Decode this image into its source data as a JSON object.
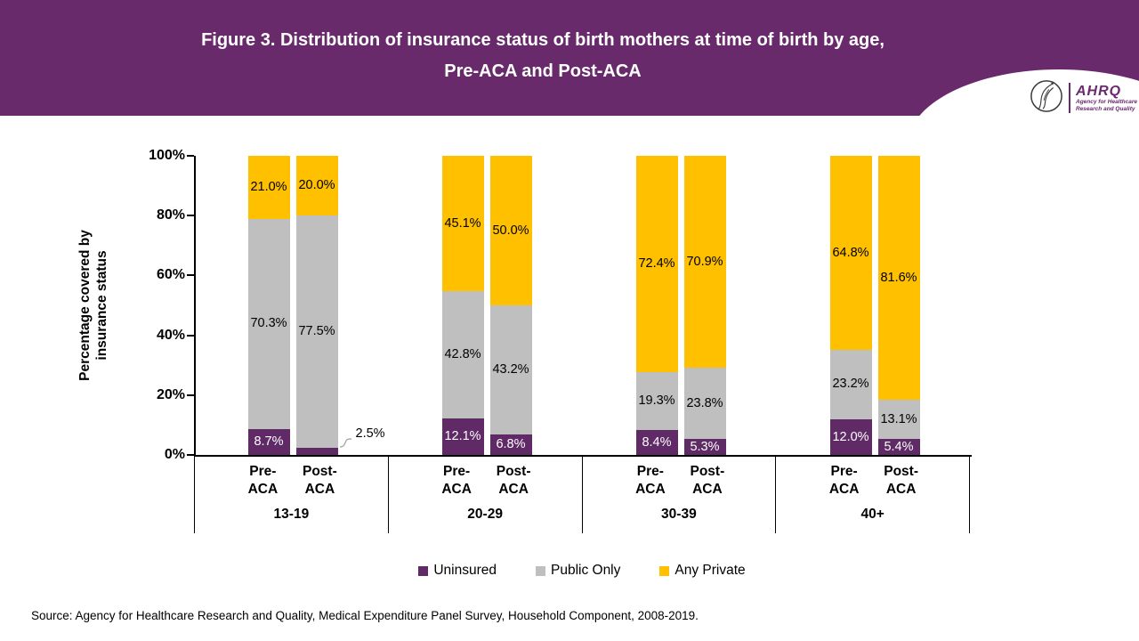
{
  "header": {
    "title_line1": "Figure 3. Distribution of insurance status of birth mothers at time of birth by age,",
    "title_line2": "Pre-ACA and Post-ACA",
    "bg_color": "#692a6b",
    "logo": {
      "acronym": "AHRQ",
      "tagline_line1": "Agency for Healthcare",
      "tagline_line2": "Research and Quality"
    }
  },
  "chart_data": {
    "type": "bar",
    "subtype": "stacked-percent",
    "title": "Figure 3. Distribution of insurance status of birth mothers at time of birth by age, Pre-ACA and Post-ACA",
    "ylabel_line1": "Percentage covered by",
    "ylabel_line2": "insurance status",
    "ylim": [
      0,
      100
    ],
    "grid": false,
    "legend_position": "bottom",
    "y_ticks": [
      {
        "value": 0,
        "label": "0%"
      },
      {
        "value": 20,
        "label": "20%"
      },
      {
        "value": 40,
        "label": "40%"
      },
      {
        "value": 60,
        "label": "60%"
      },
      {
        "value": 80,
        "label": "80%"
      },
      {
        "value": 100,
        "label": "100%"
      }
    ],
    "series": [
      {
        "key": "uninsured",
        "name": "Uninsured",
        "color": "#5f2a66",
        "label_color": "#ffffff"
      },
      {
        "key": "public_only",
        "name": "Public Only",
        "color": "#bfbfbf",
        "label_color": "#000000"
      },
      {
        "key": "any_private",
        "name": "Any Private",
        "color": "#ffc000",
        "label_color": "#000000"
      }
    ],
    "groups": [
      {
        "age": "13-19",
        "bars": [
          {
            "label_top": "Pre-",
            "label_bottom": "ACA",
            "callout": null,
            "values": {
              "uninsured": 8.7,
              "public_only": 70.3,
              "any_private": 21.0
            }
          },
          {
            "label_top": "Post-",
            "label_bottom": "ACA",
            "callout": "uninsured",
            "values": {
              "uninsured": 2.5,
              "public_only": 77.5,
              "any_private": 20.0
            }
          }
        ]
      },
      {
        "age": "20-29",
        "bars": [
          {
            "label_top": "Pre-",
            "label_bottom": "ACA",
            "callout": null,
            "values": {
              "uninsured": 12.1,
              "public_only": 42.8,
              "any_private": 45.1
            }
          },
          {
            "label_top": "Post-",
            "label_bottom": "ACA",
            "callout": null,
            "values": {
              "uninsured": 6.8,
              "public_only": 43.2,
              "any_private": 50.0
            }
          }
        ]
      },
      {
        "age": "30-39",
        "bars": [
          {
            "label_top": "Pre-",
            "label_bottom": "ACA",
            "callout": null,
            "values": {
              "uninsured": 8.4,
              "public_only": 19.3,
              "any_private": 72.4
            }
          },
          {
            "label_top": "Post-",
            "label_bottom": "ACA",
            "callout": null,
            "values": {
              "uninsured": 5.3,
              "public_only": 23.8,
              "any_private": 70.9
            }
          }
        ]
      },
      {
        "age": "40+",
        "bars": [
          {
            "label_top": "Pre-",
            "label_bottom": "ACA",
            "callout": null,
            "values": {
              "uninsured": 12.0,
              "public_only": 23.2,
              "any_private": 64.8
            }
          },
          {
            "label_top": "Post-",
            "label_bottom": "ACA",
            "callout": null,
            "values": {
              "uninsured": 5.4,
              "public_only": 13.1,
              "any_private": 81.6
            }
          }
        ]
      }
    ]
  },
  "footer": {
    "source": "Source: Agency for Healthcare Research and Quality, Medical Expenditure Panel Survey, Household Component, 2008-2019."
  }
}
